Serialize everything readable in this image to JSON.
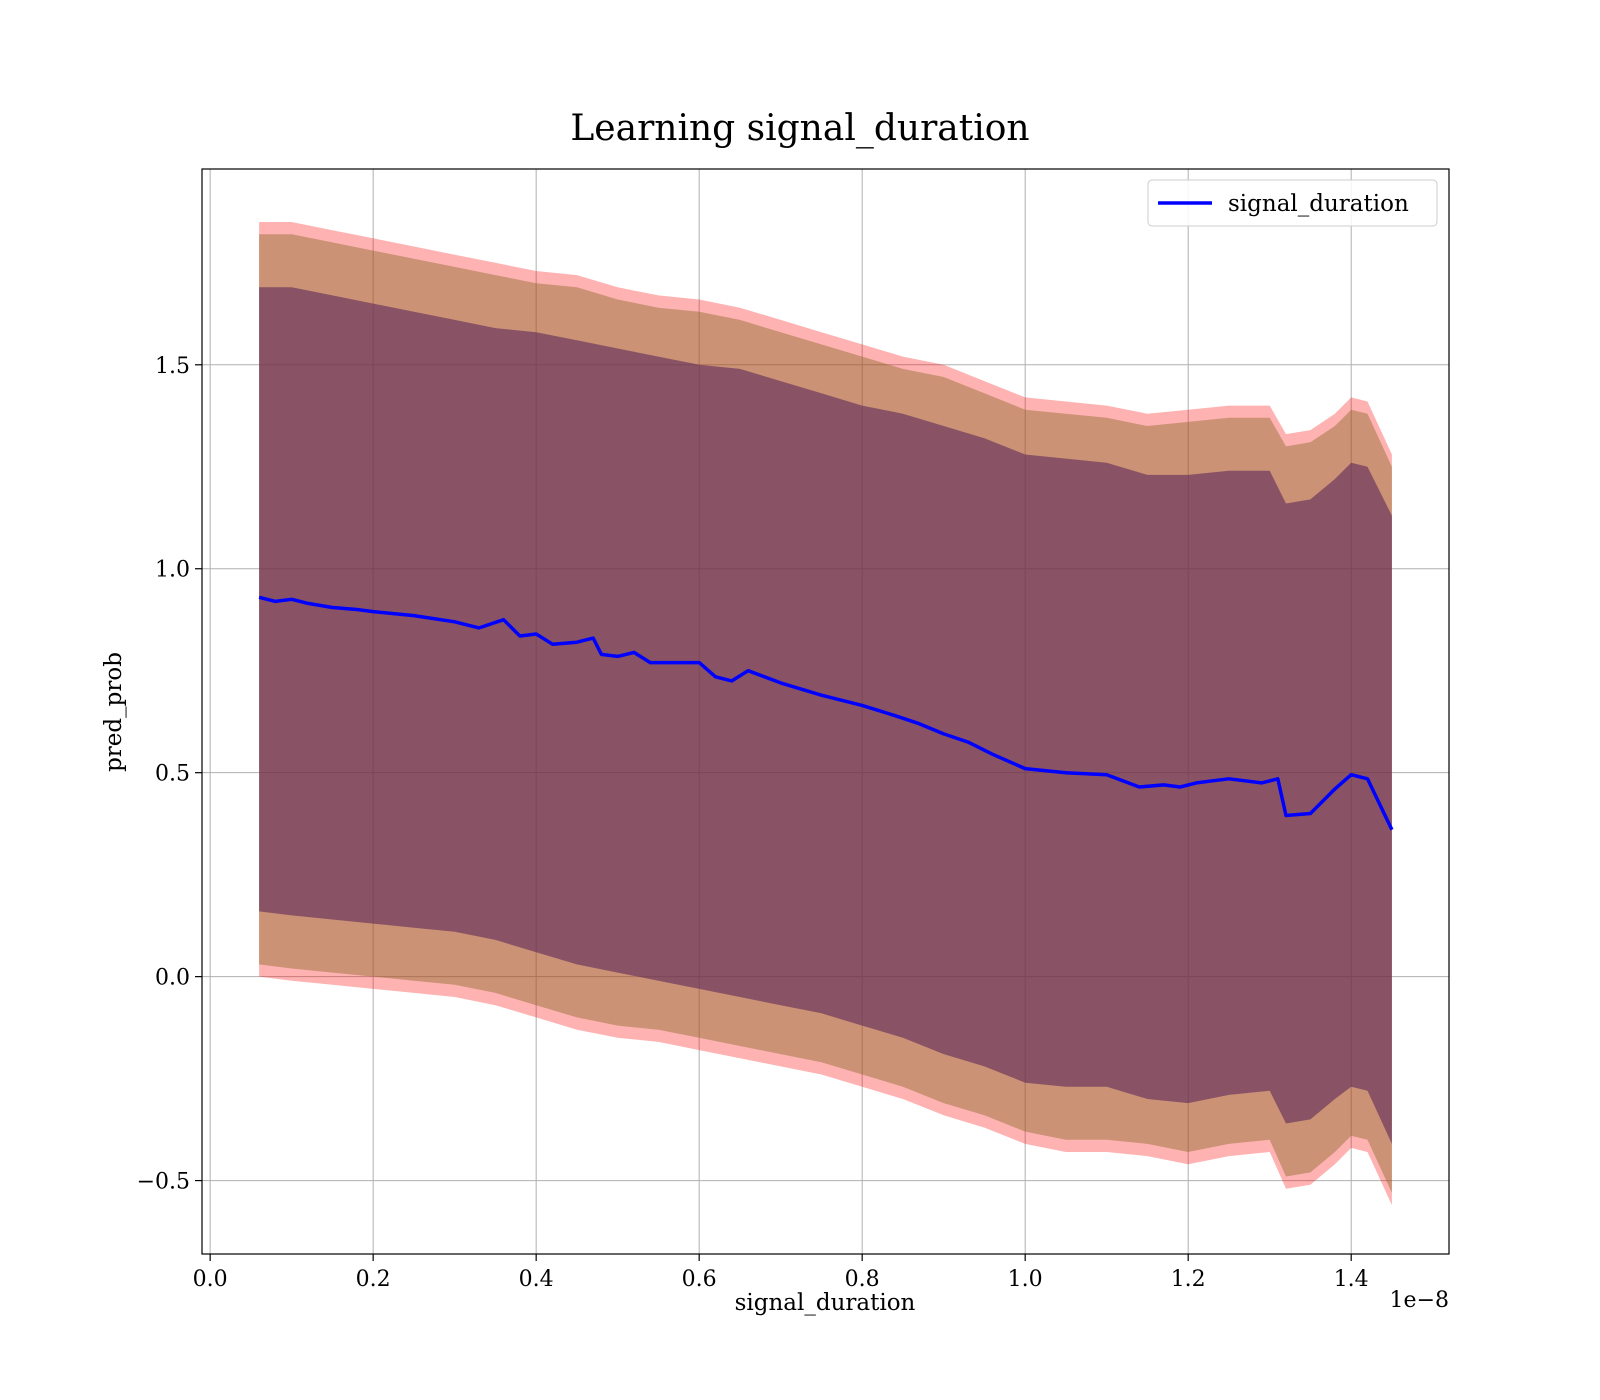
{
  "chart_data": {
    "type": "line",
    "title": "Learning signal_duration",
    "xlabel": "signal_duration",
    "ylabel": "pred_prob",
    "x_offset_text": "1e−8",
    "xlim": [
      -0.01,
      1.52
    ],
    "ylim": [
      -0.68,
      1.98
    ],
    "xticks": [
      0.0,
      0.2,
      0.4,
      0.6,
      0.8,
      1.0,
      1.2,
      1.4
    ],
    "xtick_labels": [
      "0.0",
      "0.2",
      "0.4",
      "0.6",
      "0.8",
      "1.0",
      "1.2",
      "1.4"
    ],
    "yticks": [
      -0.5,
      0.0,
      0.5,
      1.0,
      1.5
    ],
    "ytick_labels": [
      "−0.5",
      "0.0",
      "0.5",
      "1.0",
      "1.5"
    ],
    "grid": true,
    "legend": {
      "position": "top-right",
      "entries": [
        "signal_duration"
      ]
    },
    "colors": {
      "line": "#0000ff",
      "outer_band": "#ff0000",
      "middle_band": "#8c6a2a",
      "inner_band": "#5e2a5a"
    },
    "series": [
      {
        "name": "signal_duration",
        "x": [
          0.06,
          0.08,
          0.1,
          0.12,
          0.15,
          0.18,
          0.2,
          0.25,
          0.3,
          0.33,
          0.36,
          0.38,
          0.4,
          0.42,
          0.45,
          0.47,
          0.48,
          0.5,
          0.52,
          0.54,
          0.57,
          0.6,
          0.62,
          0.64,
          0.66,
          0.7,
          0.75,
          0.8,
          0.84,
          0.87,
          0.9,
          0.93,
          0.96,
          1.0,
          1.05,
          1.1,
          1.14,
          1.17,
          1.19,
          1.21,
          1.23,
          1.25,
          1.29,
          1.31,
          1.32,
          1.35,
          1.38,
          1.4,
          1.42,
          1.45
        ],
        "y": [
          0.93,
          0.92,
          0.925,
          0.915,
          0.905,
          0.9,
          0.895,
          0.885,
          0.87,
          0.855,
          0.875,
          0.835,
          0.84,
          0.815,
          0.82,
          0.83,
          0.79,
          0.785,
          0.795,
          0.77,
          0.77,
          0.77,
          0.735,
          0.725,
          0.75,
          0.72,
          0.69,
          0.665,
          0.64,
          0.62,
          0.595,
          0.575,
          0.545,
          0.51,
          0.5,
          0.495,
          0.465,
          0.47,
          0.465,
          0.475,
          0.48,
          0.485,
          0.475,
          0.485,
          0.395,
          0.4,
          0.46,
          0.495,
          0.485,
          0.36
        ]
      }
    ],
    "bands": [
      {
        "x": [
          0.06,
          0.1,
          0.15,
          0.2,
          0.25,
          0.3,
          0.35,
          0.4,
          0.45,
          0.5,
          0.55,
          0.6,
          0.65,
          0.7,
          0.75,
          0.8,
          0.85,
          0.9,
          0.95,
          1.0,
          1.05,
          1.1,
          1.15,
          1.2,
          1.25,
          1.3,
          1.32,
          1.35,
          1.38,
          1.4,
          1.42,
          1.45
        ],
        "upper": [
          1.85,
          1.85,
          1.83,
          1.81,
          1.79,
          1.77,
          1.75,
          1.73,
          1.72,
          1.69,
          1.67,
          1.66,
          1.64,
          1.61,
          1.58,
          1.55,
          1.52,
          1.5,
          1.46,
          1.42,
          1.41,
          1.4,
          1.38,
          1.39,
          1.4,
          1.4,
          1.33,
          1.34,
          1.38,
          1.42,
          1.41,
          1.28
        ],
        "lower": [
          0.0,
          -0.01,
          -0.02,
          -0.03,
          -0.04,
          -0.05,
          -0.07,
          -0.1,
          -0.13,
          -0.15,
          -0.16,
          -0.18,
          -0.2,
          -0.22,
          -0.24,
          -0.27,
          -0.3,
          -0.34,
          -0.37,
          -0.41,
          -0.43,
          -0.43,
          -0.44,
          -0.46,
          -0.44,
          -0.43,
          -0.52,
          -0.51,
          -0.46,
          -0.42,
          -0.43,
          -0.56
        ]
      },
      {
        "x": [
          0.06,
          0.1,
          0.15,
          0.2,
          0.25,
          0.3,
          0.35,
          0.4,
          0.45,
          0.5,
          0.55,
          0.6,
          0.65,
          0.7,
          0.75,
          0.8,
          0.85,
          0.9,
          0.95,
          1.0,
          1.05,
          1.1,
          1.15,
          1.2,
          1.25,
          1.3,
          1.32,
          1.35,
          1.38,
          1.4,
          1.42,
          1.45
        ],
        "upper": [
          1.82,
          1.82,
          1.8,
          1.78,
          1.76,
          1.74,
          1.72,
          1.7,
          1.69,
          1.66,
          1.64,
          1.63,
          1.61,
          1.58,
          1.55,
          1.52,
          1.49,
          1.47,
          1.43,
          1.39,
          1.38,
          1.37,
          1.35,
          1.36,
          1.37,
          1.37,
          1.3,
          1.31,
          1.35,
          1.39,
          1.38,
          1.25
        ],
        "lower": [
          0.03,
          0.02,
          0.01,
          0.0,
          -0.01,
          -0.02,
          -0.04,
          -0.07,
          -0.1,
          -0.12,
          -0.13,
          -0.15,
          -0.17,
          -0.19,
          -0.21,
          -0.24,
          -0.27,
          -0.31,
          -0.34,
          -0.38,
          -0.4,
          -0.4,
          -0.41,
          -0.43,
          -0.41,
          -0.4,
          -0.49,
          -0.48,
          -0.43,
          -0.39,
          -0.4,
          -0.53
        ]
      },
      {
        "x": [
          0.06,
          0.1,
          0.15,
          0.2,
          0.25,
          0.3,
          0.35,
          0.4,
          0.45,
          0.5,
          0.55,
          0.6,
          0.65,
          0.7,
          0.75,
          0.8,
          0.85,
          0.9,
          0.95,
          1.0,
          1.05,
          1.1,
          1.15,
          1.2,
          1.25,
          1.3,
          1.32,
          1.35,
          1.38,
          1.4,
          1.42,
          1.45
        ],
        "upper": [
          1.69,
          1.69,
          1.67,
          1.65,
          1.63,
          1.61,
          1.59,
          1.58,
          1.56,
          1.54,
          1.52,
          1.5,
          1.49,
          1.46,
          1.43,
          1.4,
          1.38,
          1.35,
          1.32,
          1.28,
          1.27,
          1.26,
          1.23,
          1.23,
          1.24,
          1.24,
          1.16,
          1.17,
          1.22,
          1.26,
          1.25,
          1.13
        ],
        "lower": [
          0.16,
          0.15,
          0.14,
          0.13,
          0.12,
          0.11,
          0.09,
          0.06,
          0.03,
          0.01,
          -0.01,
          -0.03,
          -0.05,
          -0.07,
          -0.09,
          -0.12,
          -0.15,
          -0.19,
          -0.22,
          -0.26,
          -0.27,
          -0.27,
          -0.3,
          -0.31,
          -0.29,
          -0.28,
          -0.36,
          -0.35,
          -0.3,
          -0.27,
          -0.28,
          -0.41
        ]
      }
    ]
  }
}
